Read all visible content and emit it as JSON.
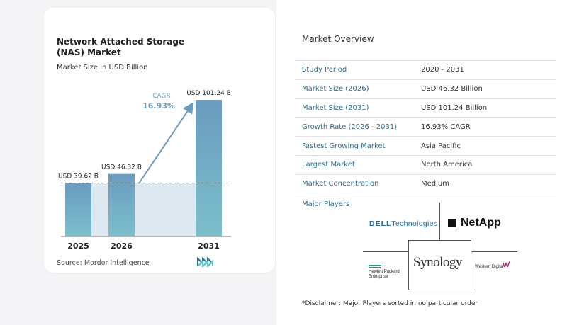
{
  "chart_data": {
    "type": "bar",
    "title": "Network Attached Storage (NAS) Market",
    "subtitle": "Market Size in USD Billion",
    "categories": [
      "2025",
      "2026",
      "2031"
    ],
    "values": [
      39.62,
      46.32,
      101.24
    ],
    "data_labels": [
      "USD 39.62 B",
      "USD 46.32 B",
      "USD 101.24 B"
    ],
    "cagr_label": "CAGR",
    "cagr_value": "16.93%",
    "ylim": [
      0,
      101.24
    ],
    "colors": {
      "bar_top": "#6a9bbf",
      "bar_bottom": "#7bbfcb",
      "arrow": "#6a9bbf",
      "shade": "#dde8f0",
      "baseline": "#777777"
    }
  },
  "source": "Source:  Mordor Intelligence",
  "overview": {
    "title": "Market Overview",
    "rows": [
      {
        "label": "Study Period",
        "value": "2020 - 2031"
      },
      {
        "label": "Market Size (2026)",
        "value": "USD 46.32 Billion"
      },
      {
        "label": "Market Size (2031)",
        "value": "USD 101.24 Billion"
      },
      {
        "label": "Growth Rate (2026 - 2031)",
        "value": "16.93% CAGR"
      },
      {
        "label": "Fastest Growing Market",
        "value": "Asia Pacific"
      },
      {
        "label": "Largest Market",
        "value": "North America"
      },
      {
        "label": "Market Concentration",
        "value": "Medium"
      }
    ]
  },
  "players": {
    "title": "Major Players",
    "dell_brand": "DELL",
    "dell_suffix": "Technologies",
    "netapp": "NetApp",
    "synology": "Synology",
    "hpe_line1": "Hewlett Packard",
    "hpe_line2": "Enterprise",
    "wd": "Western Digital"
  },
  "disclaimer": "*Disclaimer: Major Players sorted in no particular order"
}
